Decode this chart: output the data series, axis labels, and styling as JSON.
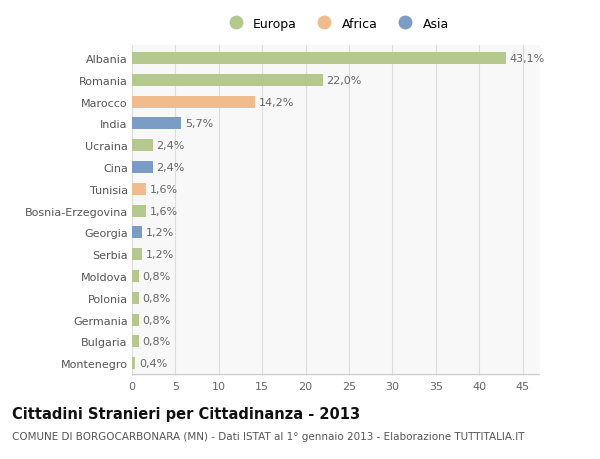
{
  "categories": [
    "Albania",
    "Romania",
    "Marocco",
    "India",
    "Ucraina",
    "Cina",
    "Tunisia",
    "Bosnia-Erzegovina",
    "Georgia",
    "Serbia",
    "Moldova",
    "Polonia",
    "Germania",
    "Bulgaria",
    "Montenegro"
  ],
  "values": [
    43.1,
    22.0,
    14.2,
    5.7,
    2.4,
    2.4,
    1.6,
    1.6,
    1.2,
    1.2,
    0.8,
    0.8,
    0.8,
    0.8,
    0.4
  ],
  "labels": [
    "43,1%",
    "22,0%",
    "14,2%",
    "5,7%",
    "2,4%",
    "2,4%",
    "1,6%",
    "1,6%",
    "1,2%",
    "1,2%",
    "0,8%",
    "0,8%",
    "0,8%",
    "0,8%",
    "0,4%"
  ],
  "colors": [
    "#b5c98e",
    "#b5c98e",
    "#f0bc8c",
    "#7b9cc4",
    "#b5c98e",
    "#7b9cc4",
    "#f0bc8c",
    "#b5c98e",
    "#7b9cc4",
    "#b5c98e",
    "#b5c98e",
    "#b5c98e",
    "#b5c98e",
    "#b5c98e",
    "#b5c98e"
  ],
  "legend_labels": [
    "Europa",
    "Africa",
    "Asia"
  ],
  "legend_colors": [
    "#b5c98e",
    "#f0bc8c",
    "#7b9cc4"
  ],
  "title": "Cittadini Stranieri per Cittadinanza - 2013",
  "subtitle": "COMUNE DI BORGOCARBONARA (MN) - Dati ISTAT al 1° gennaio 2013 - Elaborazione TUTTITALIA.IT",
  "xlim": [
    0,
    47
  ],
  "xticks": [
    0,
    5,
    10,
    15,
    20,
    25,
    30,
    35,
    40,
    45
  ],
  "bg_color": "#ffffff",
  "plot_bg_color": "#f8f8f8",
  "grid_color": "#dddddd",
  "bar_height": 0.55,
  "label_fontsize": 8,
  "tick_fontsize": 8,
  "ytick_fontsize": 8,
  "title_fontsize": 10.5,
  "subtitle_fontsize": 7.5,
  "legend_fontsize": 9
}
